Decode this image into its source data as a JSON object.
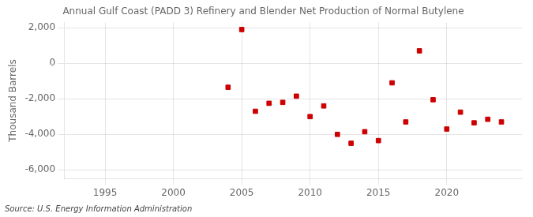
{
  "chart_data": {
    "type": "scatter",
    "title": "Annual Gulf Coast (PADD 3) Refinery and Blender Net Production of Normal Butylene",
    "ylabel": "Thousand Barrels",
    "source": "Source: U.S. Energy Information Administration",
    "x": [
      2004,
      2005,
      2006,
      2007,
      2008,
      2009,
      2010,
      2011,
      2012,
      2013,
      2014,
      2015,
      2016,
      2017,
      2018,
      2019,
      2020,
      2021,
      2022,
      2023,
      2024
    ],
    "values": [
      -1350,
      1900,
      -2700,
      -2250,
      -2200,
      -1850,
      -3000,
      -2400,
      -4000,
      -4500,
      -3850,
      -4350,
      -1100,
      -3300,
      700,
      -2050,
      -3700,
      -2750,
      -3350,
      -3150,
      -3300
    ],
    "color": "#cc0000",
    "marker": "square",
    "xlim": [
      1992,
      2025.5
    ],
    "xticks": [
      1995,
      2000,
      2005,
      2010,
      2015,
      2020
    ],
    "ylim": [
      -6500,
      2300
    ],
    "yticks": [
      {
        "value": -6000,
        "label": "-6,000"
      },
      {
        "value": -4000,
        "label": "-4,000"
      },
      {
        "value": -2000,
        "label": "-2,000"
      },
      0,
      {
        "value": 2000,
        "label": "2,000"
      }
    ],
    "grid": true
  }
}
